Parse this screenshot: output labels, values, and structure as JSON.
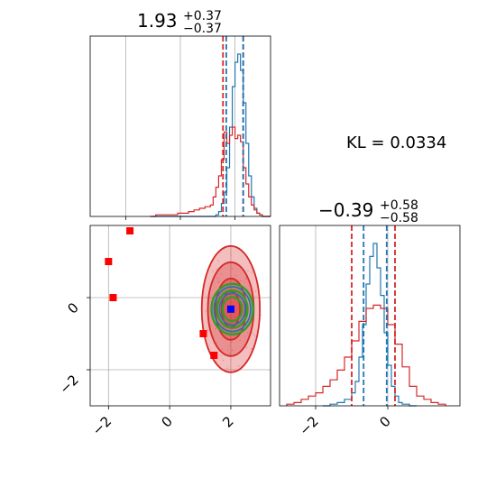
{
  "chart_data": [
    {
      "type": "histogram",
      "panel": "marginal-param-1",
      "title": {
        "value": "1.93",
        "upper": "+0.37",
        "lower": "−0.37"
      },
      "xlim": [
        -3.3,
        3.3
      ],
      "x_ticks": [
        -2,
        0,
        2
      ],
      "grid": true,
      "series": [
        {
          "color": "#1f77b4",
          "bin_edges": [
            -1.1,
            -0.9,
            -0.7,
            -0.5,
            -0.3,
            -0.1,
            0.1,
            0.3,
            0.5,
            0.7,
            0.9,
            1.1,
            1.2,
            1.3,
            1.4,
            1.5,
            1.6,
            1.7,
            1.8,
            1.9,
            2.0,
            2.1,
            2.2,
            2.3,
            2.4,
            2.5,
            2.6,
            2.7,
            2.8,
            2.9,
            3.0,
            3.1,
            3.2,
            3.3
          ],
          "counts": [
            0,
            0,
            0,
            0,
            0,
            0,
            0,
            0,
            0,
            0,
            0,
            0,
            0,
            0.01,
            0.03,
            0.08,
            0.15,
            0.3,
            0.55,
            0.8,
            0.95,
            1.0,
            0.9,
            0.7,
            0.45,
            0.25,
            0.12,
            0.05,
            0.02,
            0.01,
            0.0,
            0.0,
            0.0
          ]
        },
        {
          "color": "#d62728",
          "bin_edges": [
            -1.1,
            -0.9,
            -0.7,
            -0.5,
            -0.3,
            -0.1,
            0.1,
            0.3,
            0.5,
            0.7,
            0.9,
            1.1,
            1.2,
            1.3,
            1.4,
            1.5,
            1.6,
            1.7,
            1.8,
            1.9,
            2.0,
            2.1,
            2.2,
            2.3,
            2.4,
            2.5,
            2.6,
            2.7,
            2.8,
            2.9,
            3.0,
            3.1,
            3.2,
            3.3
          ],
          "counts": [
            0.0,
            0.01,
            0.01,
            0.01,
            0.01,
            0.02,
            0.02,
            0.03,
            0.04,
            0.05,
            0.06,
            0.07,
            0.12,
            0.18,
            0.25,
            0.35,
            0.52,
            0.45,
            0.5,
            0.55,
            0.48,
            0.5,
            0.46,
            0.3,
            0.2,
            0.12,
            0.07,
            0.04,
            0.02,
            0.01,
            0.0,
            0.0,
            0.0
          ]
        }
      ],
      "quantile_lines": [
        {
          "color": "#d62728",
          "x": [
            1.56,
            2.3
          ]
        },
        {
          "color": "#1f77b4",
          "x": [
            1.68,
            2.3
          ]
        }
      ]
    },
    {
      "type": "histogram",
      "panel": "marginal-param-2",
      "title": {
        "value": "−0.39",
        "upper": "+0.58",
        "lower": "−0.58"
      },
      "xlim": [
        -3.0,
        2.0
      ],
      "x_ticks": [
        -2,
        0
      ],
      "grid": true,
      "series": [
        {
          "color": "#1f77b4",
          "bin_edges": [
            -1.8,
            -1.6,
            -1.4,
            -1.2,
            -1.0,
            -0.9,
            -0.8,
            -0.7,
            -0.6,
            -0.5,
            -0.4,
            -0.3,
            -0.2,
            -0.1,
            0.0,
            0.1,
            0.2,
            0.3,
            0.4,
            0.6,
            0.8
          ],
          "counts": [
            0.0,
            0.01,
            0.02,
            0.04,
            0.08,
            0.15,
            0.3,
            0.5,
            0.75,
            0.92,
            1.0,
            0.85,
            0.68,
            0.45,
            0.25,
            0.12,
            0.06,
            0.02,
            0.01,
            0.0
          ]
        },
        {
          "color": "#d62728",
          "bin_edges": [
            -2.8,
            -2.6,
            -2.4,
            -2.2,
            -2.0,
            -1.8,
            -1.6,
            -1.4,
            -1.2,
            -1.0,
            -0.8,
            -0.6,
            -0.4,
            -0.2,
            0.0,
            0.2,
            0.4,
            0.6,
            0.8,
            1.0,
            1.2,
            1.4,
            1.6
          ],
          "counts": [
            0.01,
            0.02,
            0.04,
            0.06,
            0.08,
            0.12,
            0.16,
            0.22,
            0.3,
            0.4,
            0.52,
            0.6,
            0.62,
            0.6,
            0.5,
            0.38,
            0.24,
            0.12,
            0.06,
            0.04,
            0.02,
            0.01
          ]
        }
      ],
      "quantile_lines": [
        {
          "color": "#d62728",
          "x": [
            -1.0,
            0.2
          ]
        },
        {
          "color": "#1f77b4",
          "x": [
            -0.67,
            -0.03
          ]
        }
      ]
    },
    {
      "type": "scatter",
      "panel": "joint-2d",
      "xlim": [
        -2.6,
        3.3
      ],
      "ylim": [
        -3.0,
        2.0
      ],
      "x_ticks": [
        -2,
        0,
        2
      ],
      "y_ticks": [
        -2,
        0
      ],
      "grid": true,
      "contours": [
        {
          "color": "#d62728",
          "center": [
            2.0,
            -0.32
          ],
          "radii": [
            [
              0.95,
              1.75
            ],
            [
              0.75,
              1.3
            ],
            [
              0.5,
              0.85
            ],
            [
              0.3,
              0.5
            ]
          ]
        },
        {
          "color": "#2ca02c",
          "center": [
            2.05,
            -0.32
          ],
          "radii": [
            [
              0.68,
              0.7
            ],
            [
              0.5,
              0.52
            ],
            [
              0.32,
              0.33
            ]
          ]
        },
        {
          "color": "#1f77b4",
          "center": [
            2.05,
            -0.32
          ],
          "radii": [
            [
              0.6,
              0.62
            ],
            [
              0.42,
              0.44
            ]
          ]
        }
      ],
      "scatter_points": [
        {
          "x": -1.3,
          "y": 1.85,
          "color": "#ff0000"
        },
        {
          "x": -2.0,
          "y": 1.0,
          "color": "#ff0000"
        },
        {
          "x": -1.85,
          "y": 0.0,
          "color": "#ff0000"
        },
        {
          "x": 1.1,
          "y": -1.0,
          "color": "#ff0000"
        },
        {
          "x": 1.45,
          "y": -1.6,
          "color": "#ff0000"
        },
        {
          "x": 2.0,
          "y": -0.32,
          "color": "#0000ff"
        }
      ]
    }
  ],
  "annotation": {
    "kl_text": "KL = 0.0334"
  }
}
